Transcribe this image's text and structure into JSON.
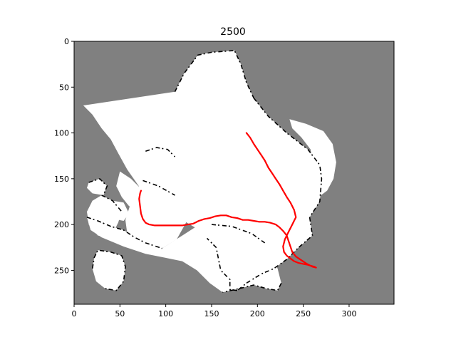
{
  "chart_data": {
    "type": "heatmap",
    "title": "2500",
    "xlabel": "",
    "ylabel": "",
    "xlim": [
      0,
      349
    ],
    "ylim": [
      287,
      0
    ],
    "x_ticks": [
      0,
      50,
      100,
      150,
      200,
      250,
      300
    ],
    "y_ticks": [
      0,
      50,
      100,
      150,
      200,
      250
    ],
    "grid": false,
    "colors": {
      "unknown": "#808080",
      "free": "#ffffff",
      "occupied": "#000000",
      "trajectory": "#ff0000"
    },
    "free_regions": [
      [
        [
          110,
          55
        ],
        [
          120,
          35
        ],
        [
          135,
          15
        ],
        [
          150,
          12
        ],
        [
          175,
          10
        ],
        [
          182,
          25
        ],
        [
          188,
          45
        ],
        [
          196,
          62
        ],
        [
          212,
          82
        ],
        [
          232,
          100
        ],
        [
          255,
          118
        ],
        [
          268,
          135
        ],
        [
          270,
          150
        ],
        [
          268,
          175
        ],
        [
          257,
          192
        ],
        [
          260,
          212
        ],
        [
          245,
          225
        ],
        [
          232,
          238
        ],
        [
          218,
          248
        ],
        [
          204,
          254
        ],
        [
          188,
          264
        ],
        [
          178,
          272
        ],
        [
          170,
          271
        ],
        [
          170,
          260
        ],
        [
          160,
          250
        ],
        [
          155,
          225
        ],
        [
          145,
          215
        ],
        [
          135,
          205
        ],
        [
          118,
          195
        ],
        [
          100,
          185
        ],
        [
          88,
          178
        ],
        [
          82,
          170
        ],
        [
          72,
          160
        ],
        [
          58,
          140
        ],
        [
          48,
          122
        ],
        [
          40,
          107
        ],
        [
          30,
          95
        ],
        [
          20,
          80
        ],
        [
          10,
          70
        ]
      ],
      [
        [
          235,
          85
        ],
        [
          253,
          90
        ],
        [
          272,
          98
        ],
        [
          282,
          112
        ],
        [
          286,
          132
        ],
        [
          283,
          150
        ],
        [
          276,
          163
        ],
        [
          264,
          172
        ],
        [
          255,
          180
        ],
        [
          248,
          190
        ],
        [
          240,
          185
        ],
        [
          232,
          178
        ],
        [
          238,
          165
        ],
        [
          250,
          155
        ],
        [
          258,
          145
        ],
        [
          260,
          132
        ],
        [
          258,
          118
        ],
        [
          248,
          105
        ],
        [
          238,
          95
        ]
      ],
      [
        [
          152,
          145
        ],
        [
          185,
          142
        ],
        [
          212,
          136
        ],
        [
          236,
          128
        ],
        [
          256,
          122
        ],
        [
          268,
          128
        ],
        [
          272,
          142
        ],
        [
          260,
          154
        ],
        [
          240,
          160
        ],
        [
          215,
          163
        ],
        [
          190,
          170
        ],
        [
          168,
          176
        ],
        [
          150,
          178
        ],
        [
          138,
          172
        ],
        [
          138,
          158
        ]
      ],
      [
        [
          75,
          152
        ],
        [
          92,
          158
        ],
        [
          110,
          168
        ],
        [
          118,
          182
        ],
        [
          122,
          198
        ],
        [
          112,
          216
        ],
        [
          96,
          226
        ],
        [
          80,
          228
        ],
        [
          68,
          222
        ],
        [
          58,
          210
        ],
        [
          56,
          195
        ],
        [
          62,
          176
        ],
        [
          68,
          162
        ]
      ],
      [
        [
          50,
          142
        ],
        [
          62,
          150
        ],
        [
          70,
          158
        ],
        [
          76,
          170
        ],
        [
          72,
          182
        ],
        [
          60,
          180
        ],
        [
          52,
          170
        ],
        [
          46,
          158
        ]
      ],
      [
        [
          78,
          120
        ],
        [
          90,
          116
        ],
        [
          102,
          118
        ],
        [
          110,
          126
        ],
        [
          112,
          136
        ],
        [
          106,
          144
        ],
        [
          92,
          146
        ],
        [
          80,
          140
        ],
        [
          74,
          130
        ]
      ],
      [
        [
          14,
          192
        ],
        [
          26,
          196
        ],
        [
          40,
          202
        ],
        [
          54,
          206
        ],
        [
          66,
          214
        ],
        [
          78,
          220
        ],
        [
          96,
          226
        ],
        [
          118,
          212
        ],
        [
          132,
          203
        ],
        [
          150,
          200
        ],
        [
          172,
          202
        ],
        [
          194,
          210
        ],
        [
          208,
          220
        ],
        [
          214,
          232
        ],
        [
          222,
          248
        ],
        [
          226,
          264
        ],
        [
          222,
          272
        ],
        [
          210,
          270
        ],
        [
          196,
          266
        ],
        [
          180,
          270
        ],
        [
          162,
          274
        ],
        [
          148,
          264
        ],
        [
          134,
          250
        ],
        [
          118,
          240
        ],
        [
          98,
          236
        ],
        [
          78,
          232
        ],
        [
          54,
          224
        ],
        [
          30,
          214
        ],
        [
          18,
          206
        ]
      ],
      [
        [
          30,
          168
        ],
        [
          42,
          174
        ],
        [
          52,
          186
        ],
        [
          48,
          198
        ],
        [
          40,
          214
        ],
        [
          26,
          212
        ],
        [
          16,
          200
        ],
        [
          14,
          186
        ],
        [
          20,
          174
        ]
      ],
      [
        [
          26,
          228
        ],
        [
          40,
          230
        ],
        [
          52,
          234
        ],
        [
          56,
          246
        ],
        [
          54,
          262
        ],
        [
          46,
          272
        ],
        [
          34,
          270
        ],
        [
          24,
          262
        ],
        [
          20,
          248
        ],
        [
          22,
          236
        ]
      ],
      [
        [
          16,
          154
        ],
        [
          28,
          150
        ],
        [
          36,
          158
        ],
        [
          32,
          168
        ],
        [
          20,
          166
        ],
        [
          14,
          160
        ]
      ],
      [
        [
          226,
          166
        ],
        [
          234,
          174
        ],
        [
          236,
          186
        ],
        [
          230,
          196
        ],
        [
          222,
          198
        ],
        [
          216,
          190
        ],
        [
          218,
          178
        ]
      ],
      [
        [
          42,
          174
        ],
        [
          54,
          176
        ],
        [
          60,
          188
        ],
        [
          54,
          196
        ],
        [
          44,
          194
        ],
        [
          38,
          184
        ]
      ],
      [
        [
          206,
          186
        ],
        [
          220,
          190
        ],
        [
          228,
          202
        ],
        [
          224,
          212
        ],
        [
          212,
          212
        ],
        [
          204,
          204
        ],
        [
          202,
          194
        ]
      ]
    ],
    "walls": [
      [
        [
          110,
          55
        ],
        [
          120,
          35
        ],
        [
          135,
          15
        ],
        [
          150,
          12
        ],
        [
          175,
          10
        ],
        [
          182,
          25
        ],
        [
          188,
          45
        ],
        [
          196,
          62
        ]
      ],
      [
        [
          196,
          62
        ],
        [
          212,
          82
        ],
        [
          232,
          100
        ],
        [
          255,
          118
        ],
        [
          268,
          135
        ],
        [
          270,
          150
        ],
        [
          268,
          175
        ],
        [
          257,
          192
        ]
      ],
      [
        [
          257,
          192
        ],
        [
          260,
          212
        ],
        [
          245,
          225
        ],
        [
          232,
          238
        ],
        [
          218,
          248
        ],
        [
          204,
          254
        ],
        [
          188,
          264
        ],
        [
          178,
          272
        ]
      ],
      [
        [
          178,
          272
        ],
        [
          170,
          271
        ],
        [
          170,
          260
        ],
        [
          160,
          250
        ],
        [
          155,
          225
        ],
        [
          145,
          215
        ]
      ],
      [
        [
          14,
          192
        ],
        [
          26,
          196
        ],
        [
          40,
          202
        ],
        [
          54,
          206
        ],
        [
          66,
          214
        ],
        [
          78,
          220
        ],
        [
          96,
          226
        ]
      ],
      [
        [
          20,
          248
        ],
        [
          22,
          236
        ],
        [
          26,
          228
        ],
        [
          40,
          230
        ],
        [
          52,
          234
        ],
        [
          56,
          246
        ],
        [
          54,
          262
        ],
        [
          46,
          272
        ],
        [
          34,
          270
        ]
      ],
      [
        [
          16,
          154
        ],
        [
          28,
          150
        ],
        [
          36,
          158
        ],
        [
          32,
          168
        ]
      ],
      [
        [
          30,
          168
        ],
        [
          42,
          174
        ],
        [
          52,
          186
        ]
      ],
      [
        [
          75,
          152
        ],
        [
          92,
          158
        ],
        [
          110,
          168
        ]
      ],
      [
        [
          78,
          120
        ],
        [
          90,
          116
        ],
        [
          102,
          118
        ],
        [
          110,
          126
        ]
      ],
      [
        [
          150,
          200
        ],
        [
          172,
          202
        ],
        [
          194,
          210
        ],
        [
          208,
          220
        ]
      ],
      [
        [
          226,
          264
        ],
        [
          222,
          272
        ],
        [
          210,
          270
        ],
        [
          196,
          266
        ],
        [
          180,
          270
        ],
        [
          162,
          274
        ]
      ]
    ],
    "trajectory": {
      "x": [
        188,
        192,
        196,
        200,
        204,
        208,
        212,
        216,
        220,
        224,
        228,
        232,
        236,
        240,
        242,
        238,
        234,
        230,
        228,
        229,
        232,
        236,
        240,
        245,
        250,
        255,
        258,
        262,
        264,
        260,
        254,
        248,
        242,
        238,
        236,
        234,
        232,
        228,
        224,
        220,
        214,
        208,
        202,
        196,
        190,
        184,
        178,
        172,
        166,
        160,
        154,
        148,
        142,
        136,
        130,
        124,
        118,
        112,
        106,
        100,
        94,
        88,
        82,
        78,
        75,
        73,
        72,
        71,
        72,
        73
      ],
      "y": [
        100,
        105,
        112,
        118,
        124,
        130,
        138,
        144,
        150,
        156,
        163,
        170,
        176,
        184,
        192,
        200,
        208,
        216,
        224,
        230,
        234,
        237,
        240,
        242,
        243,
        244,
        245,
        246,
        247,
        246,
        243,
        239,
        235,
        230,
        224,
        218,
        212,
        207,
        203,
        200,
        198,
        197,
        197,
        196,
        195,
        195,
        193,
        192,
        190,
        190,
        191,
        193,
        194,
        196,
        199,
        200,
        201,
        201,
        201,
        201,
        201,
        201,
        200,
        198,
        194,
        188,
        180,
        172,
        166,
        163
      ]
    }
  }
}
